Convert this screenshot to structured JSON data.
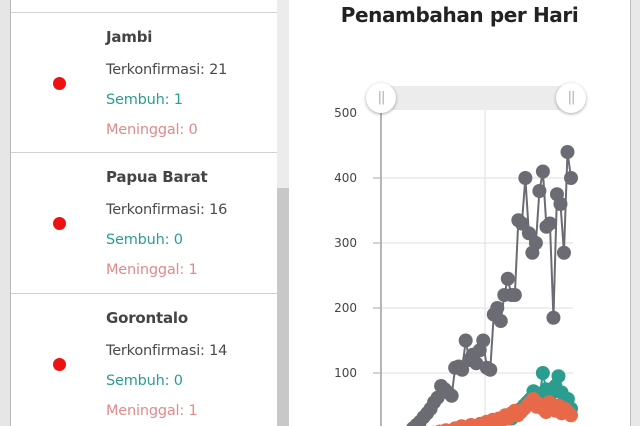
{
  "list": {
    "items": [
      {
        "province": "Jambi",
        "confirmed_label": "Terkonfirmasi: 21",
        "recovered_label": "Sembuh: 1",
        "deaths_label": "Meninggal: 0",
        "marker_color": "#ee1111"
      },
      {
        "province": "Papua Barat",
        "confirmed_label": "Terkonfirmasi: 16",
        "recovered_label": "Sembuh: 0",
        "deaths_label": "Meninggal: 1",
        "marker_color": "#ee1111"
      },
      {
        "province": "Gorontalo",
        "confirmed_label": "Terkonfirmasi: 14",
        "recovered_label": "Sembuh: 0",
        "deaths_label": "Meninggal: 1",
        "marker_color": "#ee1111"
      }
    ],
    "colors": {
      "confirmed": "#4a4a4a",
      "recovered": "#2a9d8f",
      "deaths": "#e08a8a"
    }
  },
  "chart": {
    "title": "Penambahan per Hari",
    "range_slider": {
      "left_handle": "||",
      "right_handle": "||"
    }
  },
  "chart_data": {
    "type": "line",
    "title": "Penambahan per Hari",
    "xlabel": "",
    "ylabel": "",
    "yticks": [
      "500",
      "400",
      "300",
      "200",
      "100"
    ],
    "ylim": [
      0,
      500
    ],
    "grid": true,
    "series": [
      {
        "name": "Terkonfirmasi",
        "color": "#6b6b73",
        "values": [
          2,
          8,
          15,
          20,
          25,
          32,
          38,
          45,
          55,
          62,
          80,
          75,
          70,
          65,
          108,
          110,
          105,
          150,
          120,
          128,
          115,
          135,
          150,
          108,
          105,
          190,
          200,
          180,
          220,
          245,
          220,
          220,
          335,
          330,
          400,
          315,
          285,
          300,
          380,
          410,
          325,
          330,
          185,
          375,
          360,
          285,
          440,
          400
        ]
      },
      {
        "name": "Sembuh",
        "color": "#2a9d8f",
        "values": [
          0,
          0,
          0,
          0,
          0,
          0,
          2,
          3,
          3,
          4,
          5,
          5,
          6,
          8,
          8,
          10,
          12,
          15,
          14,
          16,
          18,
          20,
          22,
          25,
          22,
          28,
          30,
          35,
          30,
          38,
          40,
          45,
          50,
          55,
          60,
          72,
          55,
          65,
          100,
          75,
          60,
          70,
          80,
          95,
          70,
          55,
          60,
          45
        ]
      },
      {
        "name": "Meninggal",
        "color": "#e8694a",
        "values": [
          0,
          2,
          5,
          8,
          6,
          10,
          8,
          12,
          10,
          12,
          15,
          12,
          18,
          14,
          16,
          20,
          18,
          15,
          22,
          20,
          25,
          22,
          28,
          25,
          30,
          28,
          35,
          30,
          38,
          42,
          35,
          40,
          45,
          50,
          55,
          60,
          48,
          52,
          45,
          40,
          55,
          48,
          42,
          50,
          38,
          45,
          40,
          35
        ]
      }
    ]
  }
}
